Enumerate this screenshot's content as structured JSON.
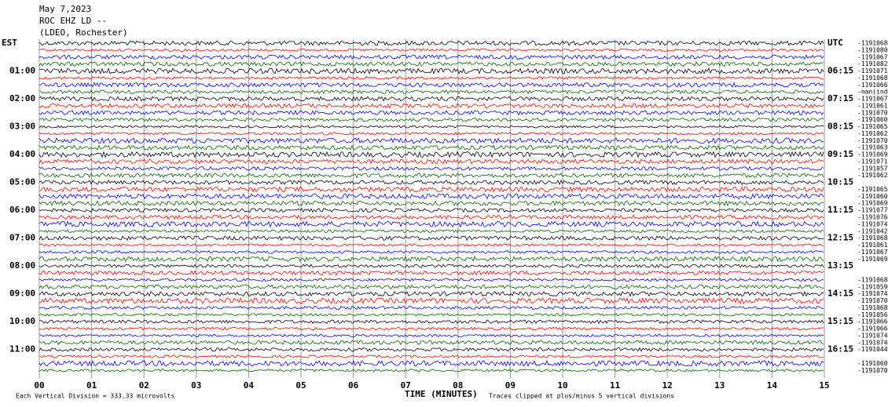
{
  "header": {
    "date": "May 7,2023",
    "station": "ROC EHZ LD --",
    "location": "(LDEO, Rochester)"
  },
  "left_labels": [
    "EST",
    "01:00",
    "02:00",
    "03:00",
    "04:00",
    "05:00",
    "06:00",
    "07:00",
    "08:00",
    "09:00",
    "10:00",
    "11:00"
  ],
  "right_labels": [
    "UTC",
    "06:15",
    "07:15",
    "08:15",
    "09:15",
    "10:15",
    "11:15",
    "12:15",
    "13:15",
    "14:15",
    "15:15",
    "16:15"
  ],
  "row_values": [
    "-1191068",
    "-1191080",
    "-1191067",
    "-1191082",
    "-1191071",
    "-1191068",
    "-1191066",
    "-nan(ind",
    "-1191067",
    "-1191061",
    "-1191070",
    "-1191060",
    "-1191065",
    "-1191062",
    "-1191070",
    "-1191063",
    "-1191069",
    "-1191071",
    "-1191057",
    "-1191062",
    null,
    "-1191065",
    "-1191060",
    "-1191069",
    "-1191077",
    "-1191076",
    "-1191074",
    "-1191042",
    "-1191068",
    "-1191061",
    "-1191067",
    "-1191069",
    null,
    null,
    "-1191068",
    "-1191059",
    "-1191074",
    "-1191070",
    "-1191068",
    "-1191056",
    "-1191066",
    "-1191066",
    "-1191074",
    "-1191074",
    "-1191044",
    null,
    "-1191060",
    "-1191070"
  ],
  "x_axis": {
    "label": "TIME (MINUTES)",
    "lim": [
      0,
      15
    ],
    "ticks": [
      {
        "value": 0,
        "label": "00"
      },
      {
        "value": 1,
        "label": "01"
      },
      {
        "value": 2,
        "label": "02"
      },
      {
        "value": 3,
        "label": "03"
      },
      {
        "value": 4,
        "label": "04"
      },
      {
        "value": 5,
        "label": "05"
      },
      {
        "value": 6,
        "label": "06"
      },
      {
        "value": 7,
        "label": "07"
      },
      {
        "value": 8,
        "label": "08"
      },
      {
        "value": 9,
        "label": "09"
      },
      10,
      11,
      12,
      13,
      14,
      15
    ]
  },
  "trace_colors": [
    "#000000",
    "#ff0000",
    "#0000ff",
    "#006400"
  ],
  "footer": {
    "scale": "Each Vertical Division =  333.33 microvolts",
    "clip": "Traces clipped at plus/minus 5 vertical divisions"
  }
}
